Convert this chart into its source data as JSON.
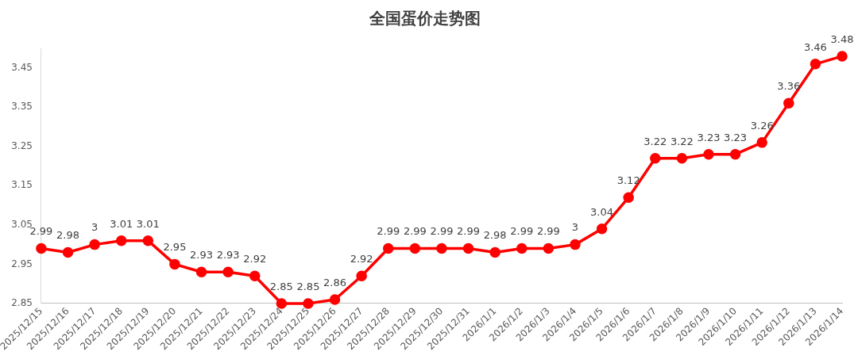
{
  "chart_data": {
    "type": "line",
    "title": "全国蛋价走势图",
    "categories": [
      "2025/12/15",
      "2025/12/16",
      "2025/12/17",
      "2025/12/18",
      "2025/12/19",
      "2025/12/20",
      "2025/12/21",
      "2025/12/22",
      "2025/12/23",
      "2025/12/24",
      "2025/12/25",
      "2025/12/26",
      "2025/12/27",
      "2025/12/28",
      "2025/12/29",
      "2025/12/30",
      "2025/12/31",
      "2026/1/1",
      "2026/1/2",
      "2026/1/3",
      "2026/1/4",
      "2026/1/5",
      "2026/1/6",
      "2026/1/7",
      "2026/1/8",
      "2026/1/9",
      "2026/1/10",
      "2026/1/11",
      "2026/1/12",
      "2026/1/13",
      "2026/1/14"
    ],
    "series": [
      {
        "color": "#ff0000",
        "values": [
          2.99,
          2.98,
          3,
          3.01,
          3.01,
          2.95,
          2.93,
          2.93,
          2.92,
          2.85,
          2.85,
          2.86,
          2.92,
          2.99,
          2.99,
          2.99,
          2.99,
          2.98,
          2.99,
          2.99,
          3,
          3.04,
          3.12,
          3.22,
          3.22,
          3.23,
          3.23,
          3.26,
          3.36,
          3.46,
          3.48
        ]
      }
    ],
    "ylim": [
      2.85,
      3.5
    ],
    "yticks": [
      2.85,
      2.95,
      3.05,
      3.15,
      3.25,
      3.35,
      3.45
    ],
    "data_labels": true,
    "marker": "circle",
    "line_style": "solid",
    "grid": false,
    "legend": false
  }
}
